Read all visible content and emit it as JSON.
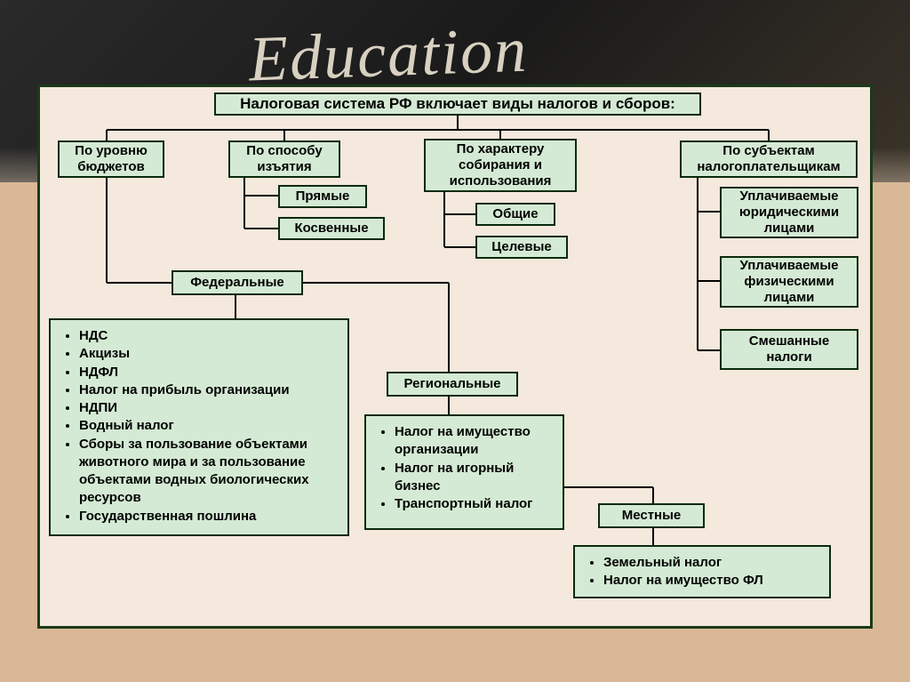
{
  "background_text": "Education",
  "title": "Налоговая система РФ включает виды налогов и сборов:",
  "categories": {
    "budget": {
      "label": "По уровню бюджетов",
      "children": {
        "federal": {
          "label": "Федеральные",
          "items": [
            "НДС",
            "Акцизы",
            "НДФЛ",
            "Налог на прибыль организации",
            "НДПИ",
            "Водный налог",
            "Сборы за пользование объектами животного мира и за пользование объектами водных биологических ресурсов",
            "Государственная пошлина"
          ]
        },
        "regional": {
          "label": "Региональные",
          "items": [
            "Налог на имущество организации",
            "Налог на игорный бизнес",
            "Транспортный налог"
          ]
        },
        "local": {
          "label": "Местные",
          "items": [
            "Земельный налог",
            "Налог на имущество ФЛ"
          ]
        }
      }
    },
    "method": {
      "label": "По способу изъятия",
      "children": {
        "direct": "Прямые",
        "indirect": "Косвенные"
      }
    },
    "character": {
      "label": "По характеру собирания и использования",
      "children": {
        "general": "Общие",
        "targeted": "Целевые"
      }
    },
    "subjects": {
      "label": "По субъектам налогоплательщикам",
      "children": {
        "legal": "Уплачиваемые юридическими лицами",
        "individual": "Уплачиваемые физическими лицами",
        "mixed": "Смешанные налоги"
      }
    }
  },
  "styling": {
    "frame_background": "#f5e8dc",
    "frame_border": "#1a3a1a",
    "node_background": "#d4ead4",
    "node_border": "#0a2a0a",
    "line_color": "#000000",
    "line_width": 2,
    "title_fontsize": 17,
    "node_fontsize": 15,
    "font_weight": "bold",
    "font_family": "Arial",
    "diagram_type": "tree"
  }
}
